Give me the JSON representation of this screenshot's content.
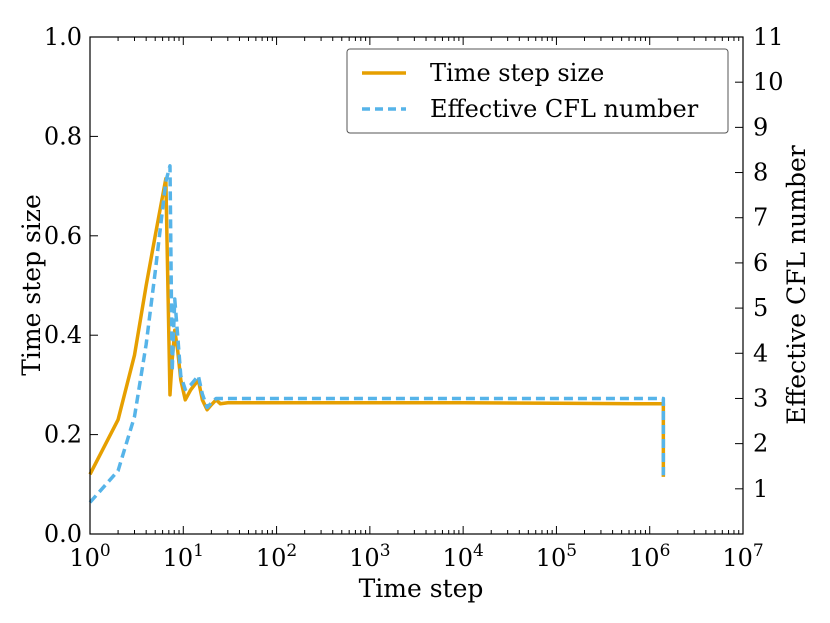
{
  "chart_data": {
    "type": "line",
    "xlabel": "Time step",
    "ylabel_left": "Time step size",
    "ylabel_right": "Effective CFL number",
    "x_scale": "log",
    "xlim": [
      1,
      10000000
    ],
    "ylim_left": [
      0.0,
      1.0
    ],
    "ylim_right": [
      0,
      11
    ],
    "x_ticks": [
      1,
      10,
      100,
      1000,
      10000,
      100000,
      1000000,
      10000000
    ],
    "x_tick_labels": [
      {
        "base": "10",
        "exp": "0"
      },
      {
        "base": "10",
        "exp": "1"
      },
      {
        "base": "10",
        "exp": "2"
      },
      {
        "base": "10",
        "exp": "3"
      },
      {
        "base": "10",
        "exp": "4"
      },
      {
        "base": "10",
        "exp": "5"
      },
      {
        "base": "10",
        "exp": "6"
      },
      {
        "base": "10",
        "exp": "7"
      }
    ],
    "y_left_ticks": [
      "0.0",
      "0.2",
      "0.4",
      "0.6",
      "0.8",
      "1.0"
    ],
    "y_right_ticks": [
      "1",
      "2",
      "3",
      "4",
      "5",
      "6",
      "7",
      "8",
      "9",
      "10",
      "11"
    ],
    "grid": false,
    "legend_position": "top-right",
    "series": [
      {
        "name": "Time step size",
        "axis": "left",
        "color": "#E69F00",
        "style": "solid",
        "x": [
          1,
          2,
          3,
          4,
          5,
          6.5,
          7.2,
          7.6,
          8.1,
          8.7,
          9.4,
          10.5,
          12,
          14.5,
          16,
          18,
          20,
          22.5,
          25,
          30,
          100,
          1000,
          10000,
          100000,
          1000000,
          1400000,
          1400000
        ],
        "y": [
          0.12,
          0.23,
          0.36,
          0.5,
          0.6,
          0.715,
          0.28,
          0.35,
          0.41,
          0.37,
          0.31,
          0.27,
          0.29,
          0.31,
          0.27,
          0.25,
          0.26,
          0.27,
          0.262,
          0.264,
          0.264,
          0.264,
          0.264,
          0.263,
          0.262,
          0.262,
          0.115
        ]
      },
      {
        "name": "Effective CFL number",
        "axis": "right",
        "color": "#56B4E9",
        "style": "dashed",
        "x": [
          1,
          2,
          3,
          4,
          5,
          6.5,
          7.2,
          7.6,
          8.1,
          8.7,
          9.4,
          10.5,
          12,
          14.5,
          16,
          18,
          20,
          22.5,
          25,
          30,
          100,
          1000,
          10000,
          100000,
          1000000,
          1400000,
          1400000
        ],
        "y": [
          0.7,
          1.4,
          2.6,
          4.2,
          5.8,
          7.8,
          8.15,
          3.6,
          5.2,
          4.4,
          3.5,
          3.2,
          3.3,
          3.5,
          3.1,
          2.8,
          2.9,
          3.0,
          3.0,
          3.0,
          3.0,
          3.0,
          3.0,
          3.0,
          3.0,
          3.0,
          1.3
        ]
      }
    ]
  }
}
